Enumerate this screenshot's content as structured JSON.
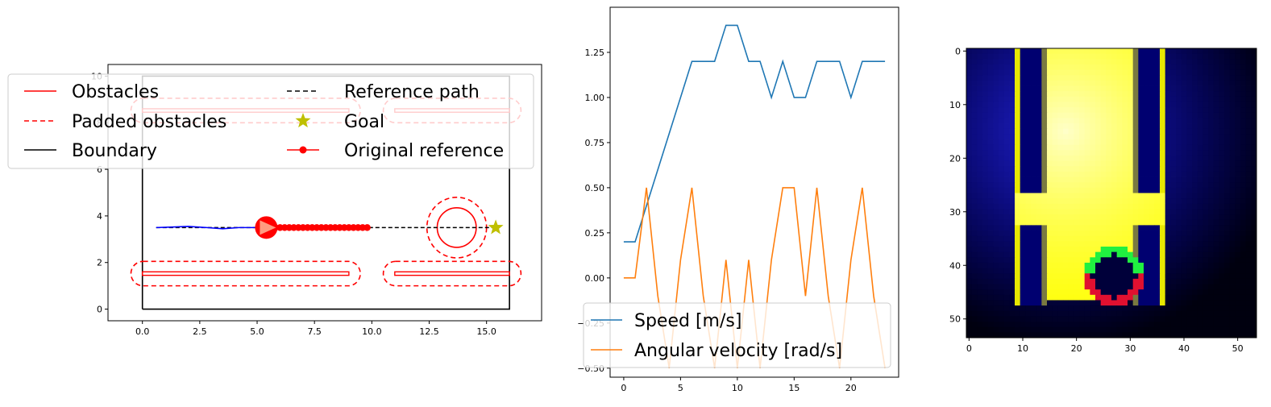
{
  "chart_data": [
    {
      "type": "line",
      "panel": "map",
      "xlim": [
        -1.5,
        17.4
      ],
      "ylim": [
        -0.5,
        10.5
      ],
      "xticks": [
        "0.0",
        "2.5",
        "5.0",
        "7.5",
        "10.0",
        "12.5",
        "15.0"
      ],
      "xtick_values": [
        0,
        2.5,
        5,
        7.5,
        10,
        12.5,
        15
      ],
      "yticks": [
        "0",
        "2",
        "4",
        "6",
        "8",
        "10"
      ],
      "ytick_values": [
        0,
        2,
        4,
        6,
        8,
        10
      ],
      "boundary": [
        [
          0,
          0
        ],
        [
          16,
          0
        ],
        [
          16,
          10
        ],
        [
          0,
          10
        ],
        [
          0,
          0
        ]
      ],
      "obstacles": [
        {
          "kind": "rect",
          "x0": 0,
          "x1": 9,
          "y0": 1.45,
          "y1": 1.6
        },
        {
          "kind": "rect",
          "x0": 11,
          "x1": 16,
          "y0": 1.45,
          "y1": 1.6
        },
        {
          "kind": "rect",
          "x0": 0,
          "x1": 9,
          "y0": 8.45,
          "y1": 8.6
        },
        {
          "kind": "rect",
          "x0": 11,
          "x1": 16,
          "y0": 8.45,
          "y1": 8.6
        },
        {
          "kind": "circle",
          "cx": 13.7,
          "cy": 3.5,
          "r": 0.85
        }
      ],
      "padded_obstacles": [
        {
          "kind": "stadium",
          "x0": -0.5,
          "x1": 9.5,
          "y0": 1.0,
          "y1": 2.05
        },
        {
          "kind": "stadium",
          "x0": 10.5,
          "x1": 16.5,
          "y0": 1.0,
          "y1": 2.05
        },
        {
          "kind": "stadium",
          "x0": -0.5,
          "x1": 9.5,
          "y0": 8.0,
          "y1": 9.05
        },
        {
          "kind": "stadium",
          "x0": 10.5,
          "x1": 16.5,
          "y0": 8.0,
          "y1": 9.05
        },
        {
          "kind": "circle",
          "cx": 13.7,
          "cy": 3.5,
          "r": 1.3
        }
      ],
      "reference_path": [
        [
          0.6,
          3.5
        ],
        [
          15.4,
          3.5
        ]
      ],
      "goal": [
        15.4,
        3.5
      ],
      "robot": {
        "x": 5.4,
        "y": 3.5
      },
      "trajectory": [
        [
          0.6,
          3.5
        ],
        [
          1.2,
          3.52
        ],
        [
          2.0,
          3.55
        ],
        [
          2.8,
          3.5
        ],
        [
          3.5,
          3.45
        ],
        [
          4.2,
          3.5
        ],
        [
          5.0,
          3.5
        ],
        [
          5.4,
          3.5
        ]
      ],
      "original_reference_x": [
        5.4,
        5.6,
        5.8,
        6.0,
        6.2,
        6.4,
        6.6,
        6.8,
        7.0,
        7.2,
        7.4,
        7.6,
        7.8,
        8.0,
        8.2,
        8.4,
        8.6,
        8.8,
        9.0,
        9.2,
        9.4,
        9.6,
        9.8
      ],
      "legend": {
        "placement": "upper-left",
        "entries": [
          {
            "label": "Obstacles",
            "color": "#ff0000",
            "style": "solid"
          },
          {
            "label": "Padded obstacles",
            "color": "#ff0000",
            "style": "dashed"
          },
          {
            "label": "Boundary",
            "color": "#000000",
            "style": "solid"
          },
          {
            "label": "Reference path",
            "color": "#000000",
            "style": "dashed"
          },
          {
            "label": "Goal",
            "color": "#bfbf00",
            "style": "star"
          },
          {
            "label": "Original reference",
            "color": "#ff0000",
            "style": "line-dot"
          }
        ]
      }
    },
    {
      "type": "line",
      "panel": "speeds",
      "xlim": [
        -1.2,
        24.2
      ],
      "ylim": [
        -0.55,
        1.5
      ],
      "xticks": [
        "0",
        "5",
        "10",
        "15",
        "20"
      ],
      "xtick_values": [
        0,
        5,
        10,
        15,
        20
      ],
      "yticks": [
        "−0.50",
        "−0.25",
        "0.00",
        "0.25",
        "0.50",
        "0.75",
        "1.00",
        "1.25"
      ],
      "ytick_values": [
        -0.5,
        -0.25,
        0,
        0.25,
        0.5,
        0.75,
        1.0,
        1.25
      ],
      "x": [
        0,
        1,
        2,
        3,
        4,
        5,
        6,
        7,
        8,
        9,
        10,
        11,
        12,
        13,
        14,
        15,
        16,
        17,
        18,
        19,
        20,
        21,
        22,
        23
      ],
      "series": [
        {
          "name": "Speed [m/s]",
          "color": "#1f77b4",
          "values": [
            0.2,
            0.2,
            0.4,
            0.6,
            0.8,
            1.0,
            1.2,
            1.2,
            1.2,
            1.4,
            1.4,
            1.2,
            1.2,
            1.0,
            1.2,
            1.0,
            1.0,
            1.2,
            1.2,
            1.2,
            1.0,
            1.2,
            1.2,
            1.2
          ]
        },
        {
          "name": "Angular velocity [rad/s]",
          "color": "#ff7f0e",
          "values": [
            0.0,
            0.0,
            0.5,
            -0.1,
            -0.5,
            0.1,
            0.5,
            -0.1,
            -0.5,
            0.1,
            -0.5,
            0.1,
            -0.5,
            0.1,
            0.5,
            0.5,
            -0.1,
            0.5,
            -0.1,
            -0.5,
            0.1,
            0.5,
            -0.1,
            -0.5
          ]
        }
      ],
      "legend": {
        "placement": "lower-center"
      }
    },
    {
      "type": "heatmap",
      "panel": "field",
      "grid_size": [
        54,
        54
      ],
      "xticks": [
        "0",
        "10",
        "20",
        "30",
        "40",
        "50"
      ],
      "xtick_values": [
        0,
        10,
        20,
        30,
        40,
        50
      ],
      "yticks": [
        "0",
        "10",
        "20",
        "30",
        "40",
        "50"
      ],
      "ytick_values": [
        0,
        10,
        20,
        30,
        40,
        50
      ],
      "field_peak": [
        18,
        15
      ],
      "walls": [
        {
          "c0": 9,
          "c1": 14,
          "r0": 0,
          "r1": 47
        },
        {
          "c0": 31,
          "c1": 36,
          "r0": 0,
          "r1": 47
        }
      ],
      "wall_gaps_rows": [
        27,
        32
      ],
      "obstacle_circle": {
        "cx": 27,
        "cy": 42,
        "r": 5
      }
    }
  ]
}
